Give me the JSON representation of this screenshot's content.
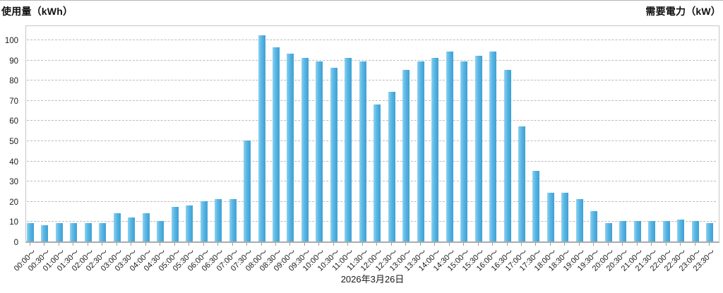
{
  "chart_data": {
    "type": "bar",
    "title": "",
    "left_axis_label": "使用量（kWh）",
    "right_axis_label": "需要電力（kW）",
    "date_caption": "2026年3月26日",
    "legend": "none",
    "grid": "horizontal-dashed",
    "ylim": [
      0,
      107
    ],
    "y_ticks": [
      0,
      10,
      20,
      30,
      40,
      50,
      60,
      70,
      80,
      90,
      100
    ],
    "categories": [
      "00:00～",
      "00:30～",
      "01:00～",
      "01:30～",
      "02:00～",
      "02:30～",
      "03:00～",
      "03:30～",
      "04:00～",
      "04:30～",
      "05:00～",
      "05:30～",
      "06:00～",
      "06:30～",
      "07:00～",
      "07:30～",
      "08:00～",
      "08:30～",
      "09:00～",
      "09:30～",
      "10:00～",
      "10:30～",
      "11:00～",
      "11:30～",
      "12:00～",
      "12:30～",
      "13:00～",
      "13:30～",
      "14:00～",
      "14:30～",
      "15:00～",
      "15:30～",
      "16:00～",
      "16:30～",
      "17:00～",
      "17:30～",
      "18:00～",
      "18:30～",
      "19:00～",
      "19:30～",
      "20:00～",
      "20:30～",
      "21:00～",
      "21:30～",
      "22:00～",
      "22:30～",
      "23:00～",
      "23:30～"
    ],
    "values": [
      9,
      8,
      9,
      9,
      9,
      9,
      14,
      12,
      14,
      10,
      17,
      18,
      20,
      21,
      21,
      50,
      102,
      96,
      93,
      91,
      89,
      86,
      91,
      89,
      68,
      74,
      85,
      89,
      91,
      94,
      89,
      92,
      94,
      85,
      57,
      35,
      24,
      24,
      21,
      15,
      9,
      10,
      10,
      10,
      10,
      11,
      10,
      9
    ],
    "colors": {
      "bar_light": "#8fd2f0",
      "bar_mid": "#58b6e4",
      "bar_dark": "#3fa0d4",
      "grid_line": "#bcbcbc",
      "axis_border": "#c6c6c6",
      "axis_bottom_border": "#ababab",
      "tick_text": "#1a1a1a"
    }
  }
}
